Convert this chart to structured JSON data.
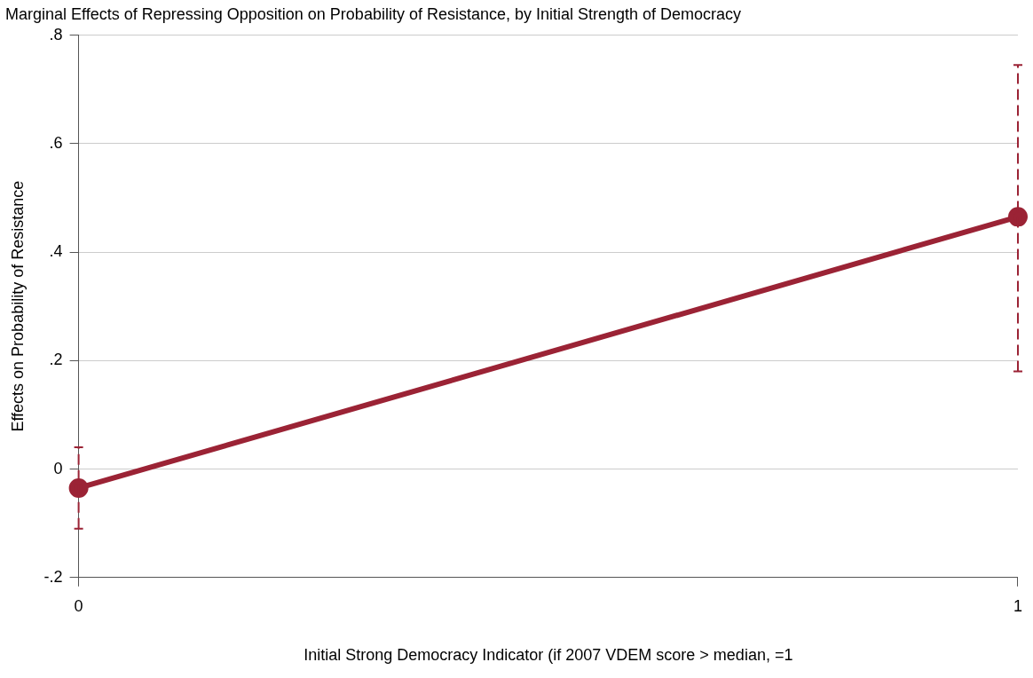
{
  "chart_data": {
    "type": "line",
    "title": "Marginal Effects of Repressing Opposition on Probability of Resistance, by Initial Strength of Democracy",
    "xlabel": "Initial Strong Democracy Indicator (if 2007 VDEM score > median, =1",
    "ylabel": "Effects on Probability of Resistance",
    "x": [
      0,
      1
    ],
    "series": [
      {
        "color": "#9b2335",
        "values": [
          -0.035,
          0.465
        ],
        "errors": [
          [
            -0.11,
            0.04
          ],
          [
            0.18,
            0.745
          ]
        ]
      }
    ],
    "xlim": [
      0,
      1
    ],
    "xticks": [
      0,
      1
    ],
    "ylim": [
      -0.2,
      0.8
    ],
    "yticks": [
      {
        "value": -0.2,
        "label": "-.2"
      },
      0,
      {
        "value": 0.2,
        "label": ".2"
      },
      {
        "value": 0.4,
        "label": ".4"
      },
      {
        "value": 0.6,
        "label": ".6"
      },
      {
        "value": 0.8,
        "label": ".8"
      }
    ],
    "grid": "y",
    "legend": false,
    "marker": "circle",
    "line_style": "solid"
  }
}
